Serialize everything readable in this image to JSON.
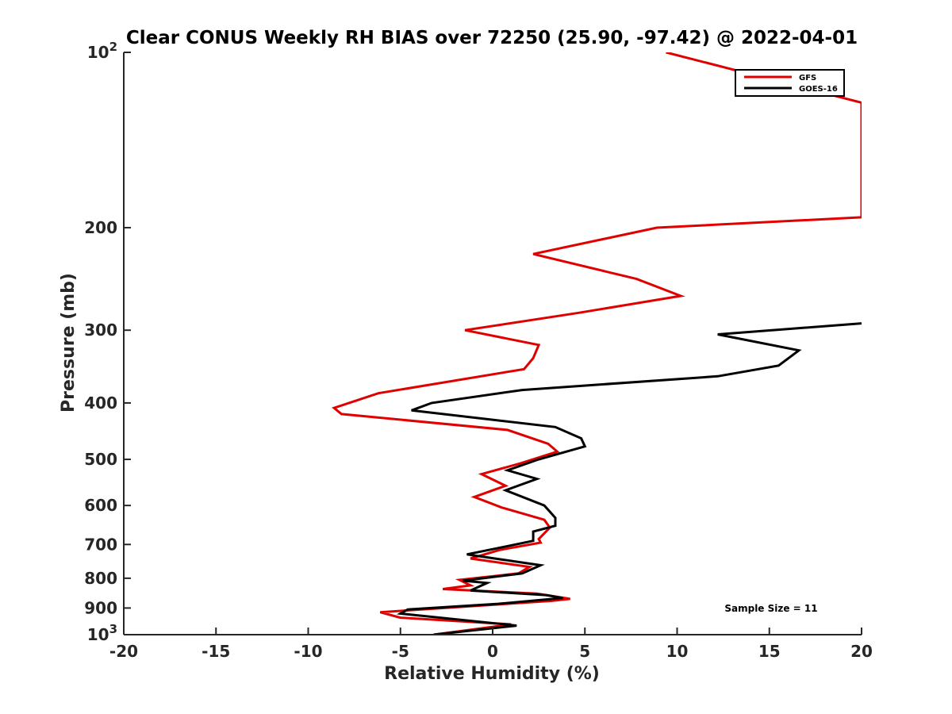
{
  "chart_data": {
    "type": "line",
    "title": "Clear CONUS Weekly RH BIAS over 72250 (25.90, -97.42) @ 2022-04-01",
    "xlabel": "Relative Humidity (%)",
    "ylabel": "Pressure (mb)",
    "xlim": [
      -20,
      20
    ],
    "ylim": [
      100,
      1000
    ],
    "y_scale": "log",
    "y_reversed": true,
    "grid": false,
    "legend_position": "top-right",
    "x_ticks": [
      "-20",
      "-15",
      "-10",
      "-5",
      "0",
      "5",
      "10",
      "15",
      "20"
    ],
    "y_ticks": [
      {
        "value": 100,
        "base": "10",
        "exp": "2"
      },
      {
        "value": 200,
        "label": "200"
      },
      {
        "value": 300,
        "label": "300"
      },
      {
        "value": 400,
        "label": "400"
      },
      {
        "value": 500,
        "label": "500"
      },
      {
        "value": 600,
        "label": "600"
      },
      {
        "value": 700,
        "label": "700"
      },
      {
        "value": 800,
        "label": "800"
      },
      {
        "value": 900,
        "label": "900"
      },
      {
        "value": 1000,
        "base": "10",
        "exp": "3"
      }
    ],
    "series": [
      {
        "name": "GFS",
        "color": "#e00000",
        "points": [
          [
            9.4,
            100
          ],
          [
            20,
            122
          ],
          [
            20,
            192
          ],
          [
            8.9,
            200
          ],
          [
            2.2,
            222
          ],
          [
            7.8,
            245
          ],
          [
            10.2,
            262
          ],
          [
            4.7,
            280
          ],
          [
            -1.5,
            300
          ],
          [
            2.5,
            318
          ],
          [
            2.2,
            335
          ],
          [
            1.7,
            350
          ],
          [
            -6.2,
            385
          ],
          [
            -8.6,
            408
          ],
          [
            -8.2,
            418
          ],
          [
            0.8,
            445
          ],
          [
            3.0,
            470
          ],
          [
            3.5,
            485
          ],
          [
            1.5,
            508
          ],
          [
            -0.6,
            530
          ],
          [
            0.7,
            555
          ],
          [
            -1.0,
            580
          ],
          [
            0.5,
            605
          ],
          [
            2.8,
            635
          ],
          [
            3.1,
            655
          ],
          [
            2.5,
            685
          ],
          [
            2.6,
            695
          ],
          [
            0.4,
            715
          ],
          [
            -1.2,
            740
          ],
          [
            2.0,
            765
          ],
          [
            1.4,
            785
          ],
          [
            -1.8,
            805
          ],
          [
            -1.2,
            823
          ],
          [
            -2.7,
            835
          ],
          [
            2.4,
            850
          ],
          [
            4.2,
            868
          ],
          [
            3.2,
            875
          ],
          [
            -6.1,
            915
          ],
          [
            -5.0,
            935
          ],
          [
            1.0,
            960
          ],
          [
            -3.2,
            1000
          ]
        ]
      },
      {
        "name": "GOES-16",
        "color": "#000000",
        "points": [
          [
            20,
            292
          ],
          [
            12.2,
            305
          ],
          [
            16.6,
            325
          ],
          [
            15.5,
            345
          ],
          [
            12.2,
            360
          ],
          [
            1.6,
            380
          ],
          [
            -3.3,
            400
          ],
          [
            -4.4,
            412
          ],
          [
            3.4,
            440
          ],
          [
            4.8,
            460
          ],
          [
            5.0,
            475
          ],
          [
            2.5,
            500
          ],
          [
            0.8,
            522
          ],
          [
            2.4,
            540
          ],
          [
            0.7,
            565
          ],
          [
            2.8,
            600
          ],
          [
            3.4,
            630
          ],
          [
            3.4,
            650
          ],
          [
            2.2,
            665
          ],
          [
            2.2,
            690
          ],
          [
            0.3,
            710
          ],
          [
            -1.4,
            728
          ],
          [
            2.6,
            760
          ],
          [
            1.6,
            785
          ],
          [
            -1.6,
            808
          ],
          [
            -0.3,
            815
          ],
          [
            -1.2,
            840
          ],
          [
            2.9,
            855
          ],
          [
            3.8,
            865
          ],
          [
            0.3,
            885
          ],
          [
            -4.6,
            905
          ],
          [
            -5.0,
            920
          ],
          [
            1.3,
            965
          ],
          [
            -3.2,
            1000
          ]
        ]
      }
    ],
    "legend": [
      {
        "label": "GFS",
        "color": "#e00000"
      },
      {
        "label": "GOES-16",
        "color": "#000000"
      }
    ],
    "annotation": "Sample Size = 11"
  }
}
